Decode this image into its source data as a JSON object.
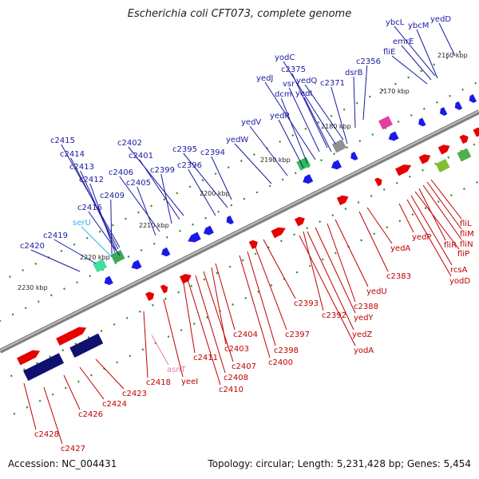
{
  "title": "Escherichia coli CFT073, complete genome",
  "footer": {
    "accession": "Accession: NC_004431",
    "summary": "Topology: circular; Length: 5,231,428 bp; Genes: 5,454"
  },
  "colors": {
    "backbone": "#808080",
    "forward_gene": "#e60000",
    "reverse_gene": "#1a1ae6",
    "forward_label": "#c00000",
    "reverse_label": "#1a1aa0",
    "rRNA_tRNA_label": "#e07bb0",
    "serU_label": "#33b5e6",
    "tick_dot": "#2a8a2a"
  },
  "kbp_ticks": [
    "2160 kbp",
    "2170 kbp",
    "2180 kbp",
    "2190 kbp",
    "2200 kbp",
    "2210 kbp",
    "2220 kbp",
    "2230 kbp"
  ],
  "upper_labels": [
    "ybcL",
    "ybcM",
    "yedD",
    "emrE",
    "fliE",
    "c2356",
    "dsrB",
    "yodC",
    "c2375",
    "vsr",
    "yedQ",
    "yedJ",
    "dcm",
    "yedI",
    "c2371",
    "yedR",
    "yedV",
    "yedW",
    "c2395",
    "c2394",
    "c2396",
    "c2402",
    "c2401",
    "c2399",
    "c2406",
    "c2405",
    "c2415",
    "c2414",
    "c2413",
    "c2412",
    "c2409",
    "c2416",
    "serU",
    "c2419",
    "c2420"
  ],
  "lower_labels": [
    "fliL",
    "fliM",
    "fliN",
    "fliR",
    "fliP",
    "yedP",
    "rcsA",
    "yodD",
    "yedA",
    "c2383",
    "yedU",
    "c2388",
    "c2393",
    "c2392",
    "yedY",
    "yedZ",
    "yodA",
    "c2397",
    "c2398",
    "c2400",
    "c2404",
    "c2403",
    "c2407",
    "c2408",
    "c2410",
    "c2411",
    "asnT",
    "yeeI",
    "c2418",
    "c2423",
    "c2424",
    "c2426",
    "c2428",
    "c2427"
  ]
}
